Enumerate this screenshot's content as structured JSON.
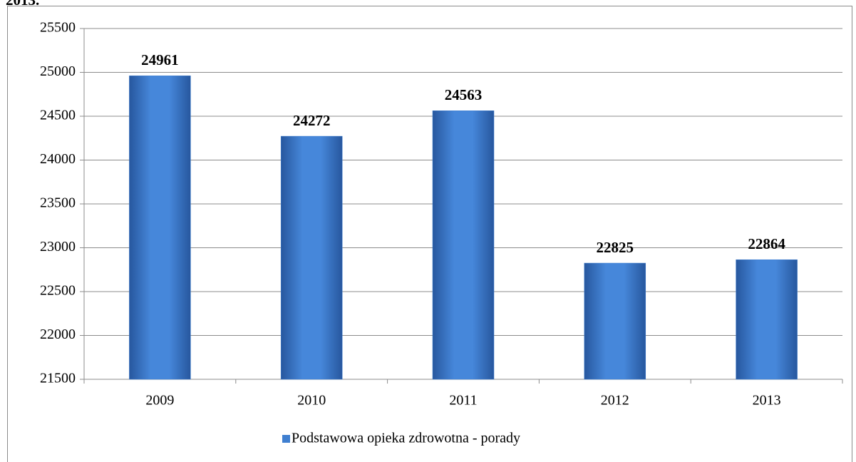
{
  "chart_data": {
    "type": "bar",
    "title": "2013.",
    "categories": [
      "2009",
      "2010",
      "2011",
      "2012",
      "2013"
    ],
    "series": [
      {
        "name": "Podstawowa opieka zdrowotna - porady",
        "color": "#3f7fd0",
        "values": [
          24961,
          24272,
          24563,
          22825,
          22864
        ]
      }
    ],
    "ylim": [
      21500,
      25500
    ],
    "yticks": [
      21500,
      22000,
      22500,
      23000,
      23500,
      24000,
      24500,
      25000,
      25500
    ],
    "grid": true,
    "legend": "bottom"
  }
}
